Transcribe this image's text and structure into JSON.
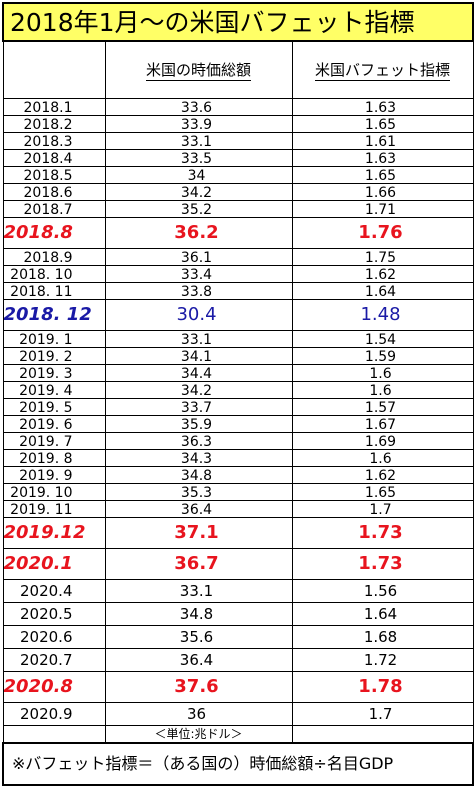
{
  "title": "2018年1月～の米国バフェット指標",
  "headers": {
    "date": "",
    "market_cap": "米国の時価総額",
    "indicator": "米国バフェット指標"
  },
  "rows": [
    {
      "date": "2018.1",
      "cap": "33.6",
      "ind": "1.63",
      "style": "s"
    },
    {
      "date": "2018.2",
      "cap": "33.9",
      "ind": "1.65",
      "style": "s"
    },
    {
      "date": "2018.3",
      "cap": "33.1",
      "ind": "1.61",
      "style": "s"
    },
    {
      "date": "2018.4",
      "cap": "33.5",
      "ind": "1.63",
      "style": "s"
    },
    {
      "date": "2018.5",
      "cap": "34",
      "ind": "1.65",
      "style": "s"
    },
    {
      "date": "2018.6",
      "cap": "34.2",
      "ind": "1.66",
      "style": "s"
    },
    {
      "date": "2018.7",
      "cap": "35.2",
      "ind": "1.71",
      "style": "s"
    },
    {
      "date": "2018.8",
      "cap": "36.2",
      "ind": "1.76",
      "style": "b red"
    },
    {
      "date": "2018.9",
      "cap": "36.1",
      "ind": "1.75",
      "style": "m"
    },
    {
      "date": "2018. 10",
      "cap": "33.4",
      "ind": "1.62",
      "style": "m"
    },
    {
      "date": "2018. 11",
      "cap": "33.8",
      "ind": "1.64",
      "style": "m"
    },
    {
      "date": "2018. 12",
      "cap": "30.4",
      "ind": "1.48",
      "style": "b blue"
    },
    {
      "date": "2019. 1",
      "cap": "33.1",
      "ind": "1.54",
      "style": "m"
    },
    {
      "date": "2019. 2",
      "cap": "34.1",
      "ind": "1.59",
      "style": "m"
    },
    {
      "date": "2019. 3",
      "cap": "34.4",
      "ind": "1.6",
      "style": "m"
    },
    {
      "date": "2019. 4",
      "cap": "34.2",
      "ind": "1.6",
      "style": "m"
    },
    {
      "date": "2019. 5",
      "cap": "33.7",
      "ind": "1.57",
      "style": "m"
    },
    {
      "date": "2019. 6",
      "cap": "35.9",
      "ind": "1.67",
      "style": "m"
    },
    {
      "date": "2019. 7",
      "cap": "36.3",
      "ind": "1.69",
      "style": "m"
    },
    {
      "date": "2019. 8",
      "cap": "34.3",
      "ind": "1.6",
      "style": "m"
    },
    {
      "date": "2019. 9",
      "cap": "34.8",
      "ind": "1.62",
      "style": "m"
    },
    {
      "date": "2019. 10",
      "cap": "35.3",
      "ind": "1.65",
      "style": "m"
    },
    {
      "date": "2019. 11",
      "cap": "36.4",
      "ind": "1.7",
      "style": "m"
    },
    {
      "date": "2019.12",
      "cap": "37.1",
      "ind": "1.73",
      "style": "b red"
    },
    {
      "date": "2020.1",
      "cap": "36.7",
      "ind": "1.73",
      "style": "b red"
    },
    {
      "date": "2020.4",
      "cap": "33.1",
      "ind": "1.56",
      "style": "l"
    },
    {
      "date": "2020.5",
      "cap": "34.8",
      "ind": "1.64",
      "style": "l"
    },
    {
      "date": "2020.6",
      "cap": "35.6",
      "ind": "1.68",
      "style": "l"
    },
    {
      "date": "2020.7",
      "cap": "36.4",
      "ind": "1.72",
      "style": "l"
    },
    {
      "date": "2020.8",
      "cap": "37.6",
      "ind": "1.78",
      "style": "b red"
    },
    {
      "date": "2020.9",
      "cap": "36",
      "ind": "1.7",
      "style": "l"
    }
  ],
  "unit_note": "＜単位:兆ドル＞",
  "footnote": "※バフェット指標＝（ある国の）時価総額÷名目GDP"
}
